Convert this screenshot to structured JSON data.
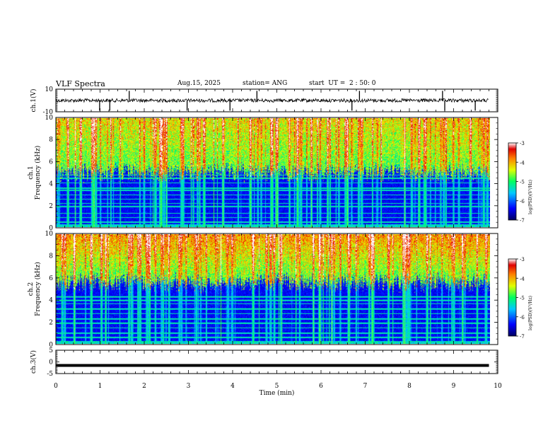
{
  "header": {
    "title": "VLF Spectra",
    "date": "Aug.15, 2025",
    "station": "station= ANG",
    "start": "start  UT =  2 : 50: 0"
  },
  "chart_data": [
    {
      "type": "line",
      "panel": "ch1-waveform",
      "ylabel": "ch.1(V)",
      "ylim": [
        -10,
        10
      ],
      "yticks": [
        "10",
        "-10"
      ],
      "baseline": 0,
      "spikes_min": [
        0.99,
        1.22,
        1.66,
        2.97,
        3.94,
        4.55,
        6.7,
        6.87,
        8.75,
        8.8,
        9.49
      ]
    },
    {
      "type": "heatmap",
      "panel": "ch1-spectrogram",
      "ylabel": "Frequency (kHz)",
      "ylabel_prefix": "ch.1",
      "ylim": [
        0,
        10
      ],
      "yticks": [
        "0",
        "2",
        "4",
        "6",
        "8",
        "10"
      ],
      "noise_floor_kHz": 5.0,
      "horizontal_lines_kHz": [
        0.5,
        0.9,
        1.3,
        1.9,
        2.2,
        2.6,
        3.0,
        3.4,
        3.6,
        4.1,
        4.5,
        4.8
      ],
      "colorbar": {
        "label": "log(PSD)(V²/Hz)",
        "ticks": [
          "-3",
          "-4",
          "-5",
          "-6",
          "-7"
        ],
        "range": [
          -7,
          -3
        ]
      }
    },
    {
      "type": "heatmap",
      "panel": "ch2-spectrogram",
      "ylabel": "Frequency (kHz)",
      "ylabel_prefix": "ch.2",
      "ylim": [
        0,
        10
      ],
      "yticks": [
        "0",
        "2",
        "4",
        "6",
        "8",
        "10"
      ],
      "noise_floor_kHz": 5.6,
      "horizontal_lines_kHz": [
        0.6,
        1.0,
        1.5,
        1.9,
        2.3,
        2.8,
        3.2,
        3.7,
        4.0,
        4.3
      ],
      "colorbar": {
        "label": "log(PSD)(V²/Hz)",
        "ticks": [
          "-3",
          "-4",
          "-5",
          "-6",
          "-7"
        ],
        "range": [
          -7,
          -3
        ]
      }
    },
    {
      "type": "line",
      "panel": "ch3-waveform",
      "ylabel": "ch.3(V)",
      "ylim": [
        -5,
        5
      ],
      "yticks": [
        "5",
        "0",
        "-5"
      ],
      "constant_value": -1.5
    }
  ],
  "xaxis": {
    "label": "Time  (min)",
    "range": [
      0,
      10
    ],
    "data_end": 9.8,
    "ticks": [
      "0",
      "1",
      "2",
      "3",
      "4",
      "5",
      "6",
      "7",
      "8",
      "9",
      "10"
    ]
  }
}
